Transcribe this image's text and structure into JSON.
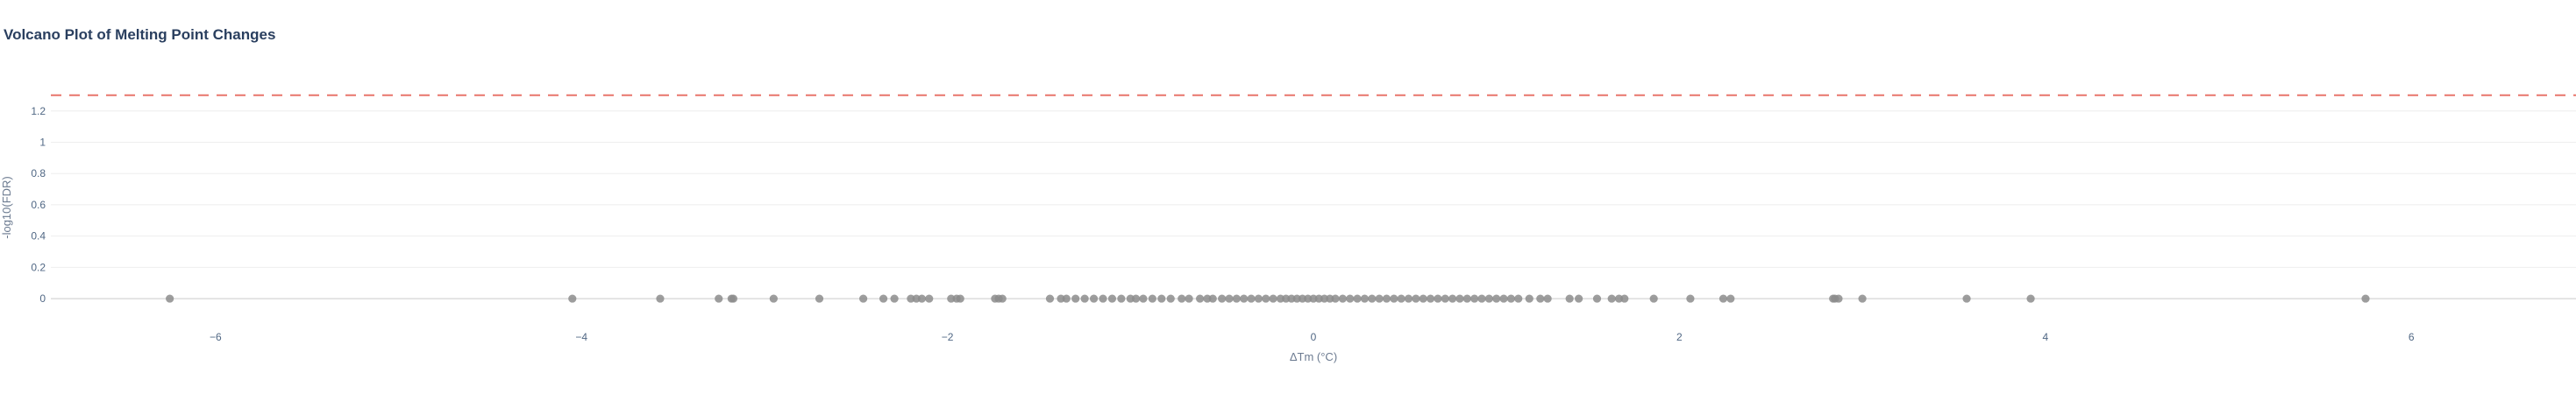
{
  "chart_data": {
    "type": "scatter",
    "title": "Volcano Plot of Melting Point Changes",
    "xlabel": "ΔTm (°C)",
    "ylabel": "-log10(FDR)",
    "xlim": [
      -6.9,
      6.9
    ],
    "ylim": [
      -0.05,
      1.35
    ],
    "xticks": [
      -6,
      -4,
      -2,
      0,
      2,
      4,
      6
    ],
    "yticks": [
      0,
      0.2,
      0.4,
      0.6,
      0.8,
      1,
      1.2
    ],
    "xticklabels": [
      "−6",
      "−4",
      "−2",
      "0",
      "2",
      "4",
      "6"
    ],
    "yticklabels": [
      "0",
      "0.2",
      "0.4",
      "0.6",
      "0.8",
      "1",
      "1.2"
    ],
    "threshold": {
      "y": 1.301,
      "color": "#e8756b",
      "style": "dashed"
    },
    "grid": true,
    "point_color": "#8c8c8c",
    "points": [
      {
        "x": -6.25,
        "y": 0
      },
      {
        "x": -4.05,
        "y": 0
      },
      {
        "x": -3.57,
        "y": 0
      },
      {
        "x": -3.25,
        "y": 0
      },
      {
        "x": -3.18,
        "y": 0
      },
      {
        "x": -3.17,
        "y": 0
      },
      {
        "x": -2.95,
        "y": 0
      },
      {
        "x": -2.7,
        "y": 0
      },
      {
        "x": -2.46,
        "y": 0
      },
      {
        "x": -2.35,
        "y": 0
      },
      {
        "x": -2.29,
        "y": 0
      },
      {
        "x": -2.2,
        "y": 0
      },
      {
        "x": -2.17,
        "y": 0
      },
      {
        "x": -2.14,
        "y": 0
      },
      {
        "x": -2.1,
        "y": 0
      },
      {
        "x": -1.98,
        "y": 0
      },
      {
        "x": -1.95,
        "y": 0
      },
      {
        "x": -1.93,
        "y": 0
      },
      {
        "x": -1.74,
        "y": 0
      },
      {
        "x": -1.72,
        "y": 0
      },
      {
        "x": -1.7,
        "y": 0
      },
      {
        "x": -1.44,
        "y": 0
      },
      {
        "x": -1.38,
        "y": 0
      },
      {
        "x": -1.35,
        "y": 0
      },
      {
        "x": -1.3,
        "y": 0
      },
      {
        "x": -1.25,
        "y": 0
      },
      {
        "x": -1.2,
        "y": 0
      },
      {
        "x": -1.15,
        "y": 0
      },
      {
        "x": -1.1,
        "y": 0
      },
      {
        "x": -1.05,
        "y": 0
      },
      {
        "x": -1.0,
        "y": 0
      },
      {
        "x": -0.97,
        "y": 0
      },
      {
        "x": -0.93,
        "y": 0
      },
      {
        "x": -0.88,
        "y": 0
      },
      {
        "x": -0.83,
        "y": 0
      },
      {
        "x": -0.78,
        "y": 0
      },
      {
        "x": -0.72,
        "y": 0
      },
      {
        "x": -0.68,
        "y": 0
      },
      {
        "x": -0.62,
        "y": 0
      },
      {
        "x": -0.58,
        "y": 0
      },
      {
        "x": -0.55,
        "y": 0
      },
      {
        "x": -0.5,
        "y": 0
      },
      {
        "x": -0.46,
        "y": 0
      },
      {
        "x": -0.42,
        "y": 0
      },
      {
        "x": -0.38,
        "y": 0
      },
      {
        "x": -0.34,
        "y": 0
      },
      {
        "x": -0.3,
        "y": 0
      },
      {
        "x": -0.26,
        "y": 0
      },
      {
        "x": -0.22,
        "y": 0
      },
      {
        "x": -0.18,
        "y": 0
      },
      {
        "x": -0.15,
        "y": 0
      },
      {
        "x": -0.12,
        "y": 0
      },
      {
        "x": -0.09,
        "y": 0
      },
      {
        "x": -0.06,
        "y": 0
      },
      {
        "x": -0.03,
        "y": 0
      },
      {
        "x": 0.0,
        "y": 0
      },
      {
        "x": 0.03,
        "y": 0
      },
      {
        "x": 0.06,
        "y": 0
      },
      {
        "x": 0.09,
        "y": 0
      },
      {
        "x": 0.12,
        "y": 0
      },
      {
        "x": 0.16,
        "y": 0
      },
      {
        "x": 0.2,
        "y": 0
      },
      {
        "x": 0.24,
        "y": 0
      },
      {
        "x": 0.28,
        "y": 0
      },
      {
        "x": 0.32,
        "y": 0
      },
      {
        "x": 0.36,
        "y": 0
      },
      {
        "x": 0.4,
        "y": 0
      },
      {
        "x": 0.44,
        "y": 0
      },
      {
        "x": 0.48,
        "y": 0
      },
      {
        "x": 0.52,
        "y": 0
      },
      {
        "x": 0.56,
        "y": 0
      },
      {
        "x": 0.6,
        "y": 0
      },
      {
        "x": 0.64,
        "y": 0
      },
      {
        "x": 0.68,
        "y": 0
      },
      {
        "x": 0.72,
        "y": 0
      },
      {
        "x": 0.76,
        "y": 0
      },
      {
        "x": 0.8,
        "y": 0
      },
      {
        "x": 0.84,
        "y": 0
      },
      {
        "x": 0.88,
        "y": 0
      },
      {
        "x": 0.92,
        "y": 0
      },
      {
        "x": 0.96,
        "y": 0
      },
      {
        "x": 1.0,
        "y": 0
      },
      {
        "x": 1.04,
        "y": 0
      },
      {
        "x": 1.08,
        "y": 0
      },
      {
        "x": 1.12,
        "y": 0
      },
      {
        "x": 1.18,
        "y": 0
      },
      {
        "x": 1.24,
        "y": 0
      },
      {
        "x": 1.28,
        "y": 0
      },
      {
        "x": 1.4,
        "y": 0
      },
      {
        "x": 1.45,
        "y": 0
      },
      {
        "x": 1.55,
        "y": 0
      },
      {
        "x": 1.63,
        "y": 0
      },
      {
        "x": 1.67,
        "y": 0
      },
      {
        "x": 1.7,
        "y": 0
      },
      {
        "x": 1.86,
        "y": 0
      },
      {
        "x": 2.06,
        "y": 0
      },
      {
        "x": 2.24,
        "y": 0
      },
      {
        "x": 2.28,
        "y": 0
      },
      {
        "x": 2.84,
        "y": 0
      },
      {
        "x": 2.85,
        "y": 0
      },
      {
        "x": 2.87,
        "y": 0
      },
      {
        "x": 3.0,
        "y": 0
      },
      {
        "x": 3.57,
        "y": 0
      },
      {
        "x": 3.92,
        "y": 0
      },
      {
        "x": 5.75,
        "y": 0
      }
    ]
  }
}
